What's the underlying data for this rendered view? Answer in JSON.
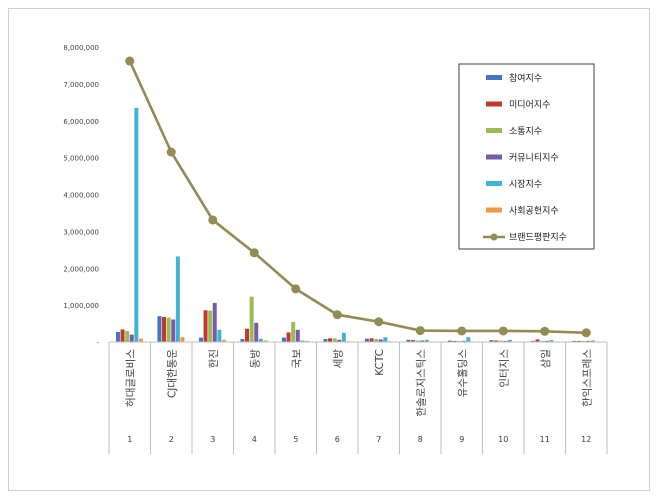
{
  "chart_data": {
    "type": "bar",
    "categories": [
      "허대글로비스",
      "CJ대한통운",
      "한진",
      "동방",
      "국보",
      "세방",
      "KCTC",
      "한솔로지스틱스",
      "유수홀딩스",
      "인터지스",
      "삼일",
      "한익스프레스"
    ],
    "ranks": [
      "1",
      "2",
      "3",
      "4",
      "5",
      "6",
      "7",
      "8",
      "9",
      "10",
      "11",
      "12"
    ],
    "yticks": [
      "8,000,000",
      "7,000,000",
      "6,000,000",
      "5,000,000",
      "4,000,000",
      "3,000,000",
      "2,000,000",
      "1,000,000",
      "-"
    ],
    "ylim": [
      0,
      8000000
    ],
    "series": [
      {
        "name": "참여지수",
        "color": "#4472c4",
        "values": [
          270000,
          700000,
          120000,
          80000,
          120000,
          80000,
          90000,
          60000,
          40000,
          50000,
          30000,
          30000
        ]
      },
      {
        "name": "미디어지수",
        "color": "#c0392b",
        "values": [
          340000,
          680000,
          860000,
          360000,
          260000,
          100000,
          100000,
          50000,
          30000,
          40000,
          70000,
          30000
        ]
      },
      {
        "name": "소통지수",
        "color": "#9bbb59",
        "values": [
          300000,
          660000,
          850000,
          1230000,
          540000,
          100000,
          80000,
          40000,
          30000,
          40000,
          30000,
          30000
        ]
      },
      {
        "name": "커뮤니티지수",
        "color": "#7a5ba6",
        "values": [
          200000,
          610000,
          1060000,
          520000,
          330000,
          60000,
          70000,
          40000,
          30000,
          30000,
          30000,
          30000
        ]
      },
      {
        "name": "시장지수",
        "color": "#3fb5d3",
        "values": [
          6350000,
          2320000,
          330000,
          90000,
          40000,
          250000,
          130000,
          60000,
          130000,
          60000,
          50000,
          40000
        ]
      },
      {
        "name": "사회공헌지수",
        "color": "#f79646",
        "values": [
          90000,
          130000,
          60000,
          40000,
          30000,
          20000,
          20000,
          15000,
          15000,
          15000,
          15000,
          15000
        ]
      }
    ],
    "line": {
      "name": "브랜드평판지수",
      "color": "#948a54",
      "values": [
        7620000,
        5150000,
        3310000,
        2420000,
        1440000,
        740000,
        550000,
        310000,
        300000,
        300000,
        290000,
        250000
      ]
    },
    "legend_position": "top-right",
    "grid": false
  }
}
